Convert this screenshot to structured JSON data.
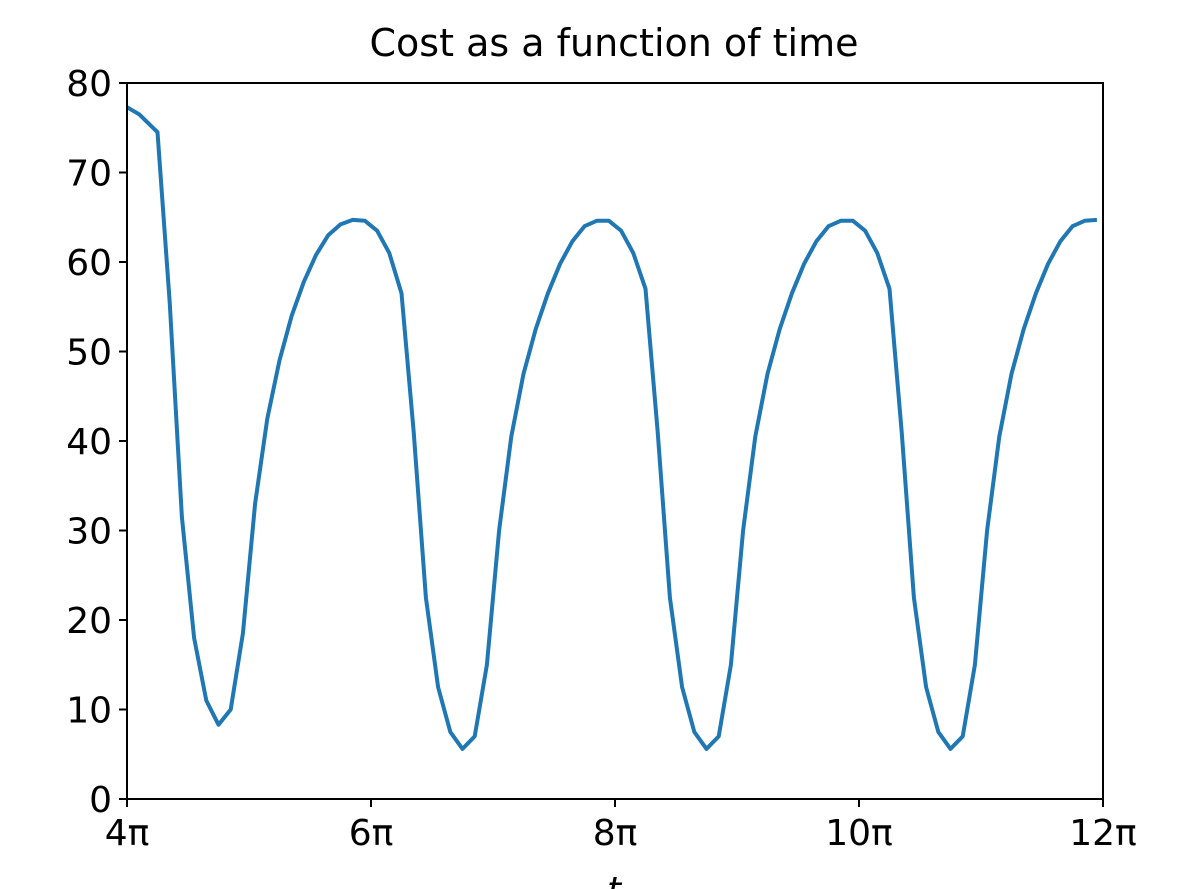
{
  "chart_data": {
    "type": "line",
    "title": "Cost as a function of time",
    "xlabel": "t",
    "ylabel": "",
    "xlim_pi": [
      4,
      12
    ],
    "ylim": [
      0,
      80
    ],
    "grid": false,
    "x_ticks": [
      {
        "value_pi": 4,
        "label": "4π"
      },
      {
        "value_pi": 6,
        "label": "6π"
      },
      {
        "value_pi": 8,
        "label": "8π"
      },
      {
        "value_pi": 10,
        "label": "10π"
      },
      {
        "value_pi": 12,
        "label": "12π"
      }
    ],
    "y_ticks": [
      {
        "value": 0,
        "label": "0"
      },
      {
        "value": 10,
        "label": "10"
      },
      {
        "value": 20,
        "label": "20"
      },
      {
        "value": 30,
        "label": "30"
      },
      {
        "value": 40,
        "label": "40"
      },
      {
        "value": 50,
        "label": "50"
      },
      {
        "value": 60,
        "label": "60"
      },
      {
        "value": 70,
        "label": "70"
      },
      {
        "value": 80,
        "label": "80"
      }
    ],
    "series": [
      {
        "color": "#1f77b4",
        "x_pi": [
          4.0,
          4.1,
          4.25,
          4.35,
          4.45,
          4.55,
          4.65,
          4.75,
          4.85,
          4.95,
          5.05,
          5.15,
          5.25,
          5.35,
          5.45,
          5.55,
          5.65,
          5.75,
          5.85,
          5.95,
          6.05,
          6.15,
          6.25,
          6.35,
          6.45,
          6.55,
          6.65,
          6.75,
          6.85,
          6.95,
          7.05,
          7.15,
          7.25,
          7.35,
          7.45,
          7.55,
          7.65,
          7.75,
          7.85,
          7.95,
          8.05,
          8.15,
          8.25,
          8.35,
          8.45,
          8.55,
          8.65,
          8.75,
          8.85,
          8.95,
          9.05,
          9.15,
          9.25,
          9.35,
          9.45,
          9.55,
          9.65,
          9.75,
          9.85,
          9.95,
          10.05,
          10.15,
          10.25,
          10.35,
          10.45,
          10.55,
          10.65,
          10.75,
          10.85,
          10.95,
          11.05,
          11.15,
          11.25,
          11.35,
          11.45,
          11.55,
          11.65,
          11.75,
          11.85,
          11.95
        ],
        "y": [
          77.3,
          76.5,
          74.5,
          55.5,
          31.5,
          18,
          11,
          8.3,
          10,
          18.5,
          33,
          42.5,
          49,
          54,
          57.8,
          60.8,
          63,
          64.2,
          64.7,
          64.6,
          63.5,
          61,
          56.5,
          41,
          22.5,
          12.5,
          7.5,
          5.6,
          7,
          15,
          30,
          40.5,
          47.5,
          52.5,
          56.5,
          59.8,
          62.3,
          64,
          64.6,
          64.6,
          63.5,
          61,
          57,
          41,
          22.5,
          12.5,
          7.5,
          5.6,
          7,
          15,
          30,
          40.5,
          47.5,
          52.5,
          56.5,
          59.8,
          62.3,
          64,
          64.6,
          64.6,
          63.5,
          61,
          57,
          41,
          22.5,
          12.5,
          7.5,
          5.6,
          7,
          15,
          30,
          40.5,
          47.5,
          52.5,
          56.5,
          59.8,
          62.3,
          64,
          64.6,
          64.7
        ]
      }
    ]
  }
}
